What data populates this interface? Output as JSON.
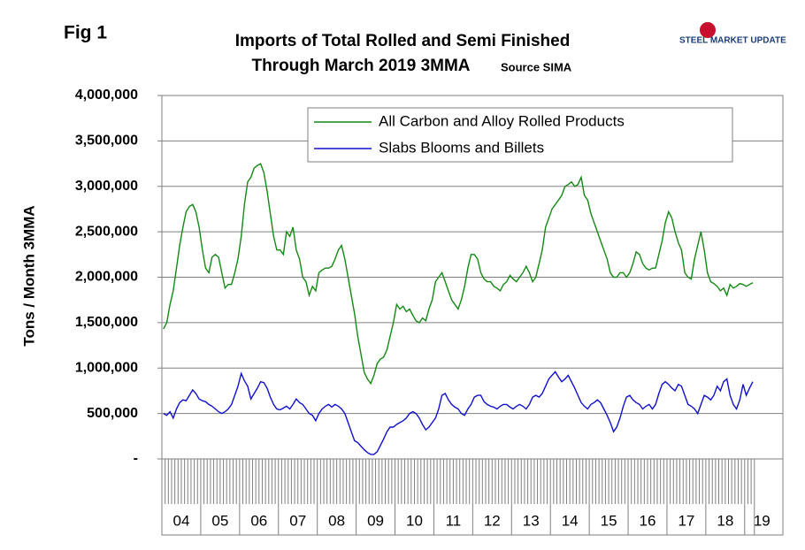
{
  "chart_data": {
    "type": "line",
    "figure_label": "Fig 1",
    "title": "Imports of Total Rolled and Semi Finished",
    "subtitle": "Through March 2019 3MMA",
    "source": "Source SIMA",
    "logo": "STEEL MARKET UPDATE",
    "y_label": "Tons / Month 3MMA",
    "categories": [
      null,
      null,
      null,
      null,
      null,
      null,
      "04",
      null,
      null,
      null,
      null,
      null,
      null,
      null,
      null,
      null,
      null,
      null,
      "05",
      null,
      null,
      null,
      null,
      null,
      null,
      null,
      null,
      null,
      null,
      null,
      "06",
      null,
      null,
      null,
      null,
      null,
      null,
      null,
      null,
      null,
      null,
      null,
      "07",
      null,
      null,
      null,
      null,
      null,
      null,
      null,
      null,
      null,
      null,
      null,
      "08",
      null,
      null,
      null,
      null,
      null,
      null,
      null,
      null,
      null,
      null,
      null,
      "09",
      null,
      null,
      null,
      null,
      null,
      null,
      null,
      null,
      null,
      null,
      null,
      "10",
      null,
      null,
      null,
      null,
      null,
      null,
      null,
      null,
      null,
      null,
      null,
      "11",
      null,
      null,
      null,
      null,
      null,
      null,
      null,
      null,
      null,
      null,
      null,
      "12",
      null,
      null,
      null,
      null,
      null,
      null,
      null,
      null,
      null,
      null,
      null,
      "13",
      null,
      null,
      null,
      null,
      null,
      null,
      null,
      null,
      null,
      null,
      null,
      "14",
      null,
      null,
      null,
      null,
      null,
      null,
      null,
      null,
      null,
      null,
      null,
      "15",
      null,
      null,
      null,
      null,
      null,
      null,
      null,
      null,
      null,
      null,
      null,
      "16",
      null,
      null,
      null,
      null,
      null,
      null,
      null,
      null,
      null,
      null,
      null,
      "17",
      null,
      null,
      null,
      null,
      null,
      null,
      null,
      null,
      null,
      null,
      null,
      "18",
      null,
      null,
      null,
      null,
      null,
      null,
      "19",
      null
    ],
    "series": [
      {
        "name": "All Carbon and Alloy Rolled Products",
        "color": "#138a13",
        "values": [
          1430000,
          1500000,
          1700000,
          1850000,
          2100000,
          2350000,
          2550000,
          2720000,
          2780000,
          2800000,
          2720000,
          2550000,
          2300000,
          2100000,
          2050000,
          2220000,
          2250000,
          2220000,
          2050000,
          1880000,
          1920000,
          1920000,
          2050000,
          2200000,
          2450000,
          2800000,
          3050000,
          3100000,
          3200000,
          3230000,
          3250000,
          3150000,
          2950000,
          2700000,
          2450000,
          2300000,
          2300000,
          2250000,
          2500000,
          2450000,
          2550000,
          2300000,
          2200000,
          2000000,
          1950000,
          1800000,
          1900000,
          1850000,
          2050000,
          2080000,
          2100000,
          2100000,
          2120000,
          2200000,
          2300000,
          2350000,
          2200000,
          2000000,
          1800000,
          1600000,
          1350000,
          1150000,
          950000,
          880000,
          830000,
          920000,
          1050000,
          1100000,
          1120000,
          1200000,
          1350000,
          1500000,
          1700000,
          1650000,
          1680000,
          1620000,
          1650000,
          1580000,
          1520000,
          1500000,
          1550000,
          1520000,
          1650000,
          1750000,
          1950000,
          2000000,
          2050000,
          1950000,
          1850000,
          1750000,
          1700000,
          1650000,
          1750000,
          1900000,
          2100000,
          2250000,
          2250000,
          2200000,
          2050000,
          1980000,
          1950000,
          1950000,
          1900000,
          1880000,
          1850000,
          1920000,
          1950000,
          2020000,
          1980000,
          1950000,
          2000000,
          2050000,
          2120000,
          2050000,
          1950000,
          2000000,
          2150000,
          2300000,
          2550000,
          2650000,
          2750000,
          2800000,
          2850000,
          2900000,
          3000000,
          3020000,
          3050000,
          3000000,
          3020000,
          3100000,
          2900000,
          2850000,
          2700000,
          2600000,
          2500000,
          2400000,
          2300000,
          2200000,
          2050000,
          2000000,
          2000000,
          2050000,
          2050000,
          2000000,
          2050000,
          2150000,
          2280000,
          2250000,
          2150000,
          2100000,
          2080000,
          2100000,
          2100000,
          2250000,
          2400000,
          2600000,
          2720000,
          2650000,
          2500000,
          2380000,
          2300000,
          2050000,
          2000000,
          1980000,
          2200000,
          2350000,
          2500000,
          2300000,
          2050000,
          1950000,
          1930000,
          1900000,
          1850000,
          1880000,
          1800000,
          1920000,
          1880000,
          1900000,
          1930000,
          1920000,
          1900000,
          1920000,
          1940000
        ]
      },
      {
        "name": "Slabs Blooms and Billets",
        "color": "#1010d0",
        "values": [
          500000,
          480000,
          520000,
          450000,
          550000,
          620000,
          650000,
          640000,
          700000,
          760000,
          720000,
          660000,
          640000,
          630000,
          600000,
          580000,
          550000,
          520000,
          500000,
          520000,
          550000,
          600000,
          700000,
          800000,
          940000,
          860000,
          800000,
          660000,
          720000,
          780000,
          850000,
          840000,
          780000,
          680000,
          600000,
          550000,
          540000,
          560000,
          580000,
          550000,
          600000,
          660000,
          620000,
          600000,
          550000,
          500000,
          480000,
          420000,
          500000,
          550000,
          580000,
          600000,
          570000,
          600000,
          580000,
          550000,
          500000,
          400000,
          300000,
          200000,
          180000,
          140000,
          100000,
          70000,
          50000,
          50000,
          80000,
          150000,
          220000,
          300000,
          350000,
          350000,
          380000,
          400000,
          420000,
          450000,
          500000,
          520000,
          500000,
          450000,
          380000,
          320000,
          350000,
          400000,
          450000,
          550000,
          700000,
          720000,
          650000,
          600000,
          570000,
          550000,
          500000,
          480000,
          550000,
          600000,
          680000,
          700000,
          700000,
          630000,
          600000,
          580000,
          570000,
          550000,
          580000,
          600000,
          600000,
          570000,
          550000,
          580000,
          600000,
          580000,
          550000,
          600000,
          680000,
          700000,
          680000,
          720000,
          800000,
          880000,
          920000,
          960000,
          900000,
          850000,
          880000,
          920000,
          850000,
          780000,
          700000,
          620000,
          580000,
          550000,
          600000,
          620000,
          650000,
          620000,
          550000,
          480000,
          400000,
          300000,
          350000,
          450000,
          580000,
          680000,
          700000,
          650000,
          620000,
          600000,
          550000,
          580000,
          600000,
          550000,
          600000,
          720000,
          820000,
          850000,
          820000,
          780000,
          750000,
          820000,
          800000,
          700000,
          600000,
          580000,
          550000,
          500000,
          600000,
          700000,
          680000,
          650000,
          700000,
          800000,
          750000,
          850000,
          880000,
          700000,
          600000,
          550000,
          650000,
          820000,
          700000,
          780000,
          850000
        ]
      }
    ],
    "ylim": [
      0,
      4000000
    ],
    "yticks": [
      {
        "value": 0,
        "label": "-"
      },
      {
        "value": 500000,
        "label": "500,000"
      },
      {
        "value": 1000000,
        "label": "1,000,000"
      },
      {
        "value": 1500000,
        "label": "1,500,000"
      },
      {
        "value": 2000000,
        "label": "2,000,000"
      },
      {
        "value": 2500000,
        "label": "2,500,000"
      },
      {
        "value": 3000000,
        "label": "3,000,000"
      },
      {
        "value": 3500000,
        "label": "3,500,000"
      },
      {
        "value": 4000000,
        "label": "4,000,000"
      }
    ],
    "grid": true
  }
}
